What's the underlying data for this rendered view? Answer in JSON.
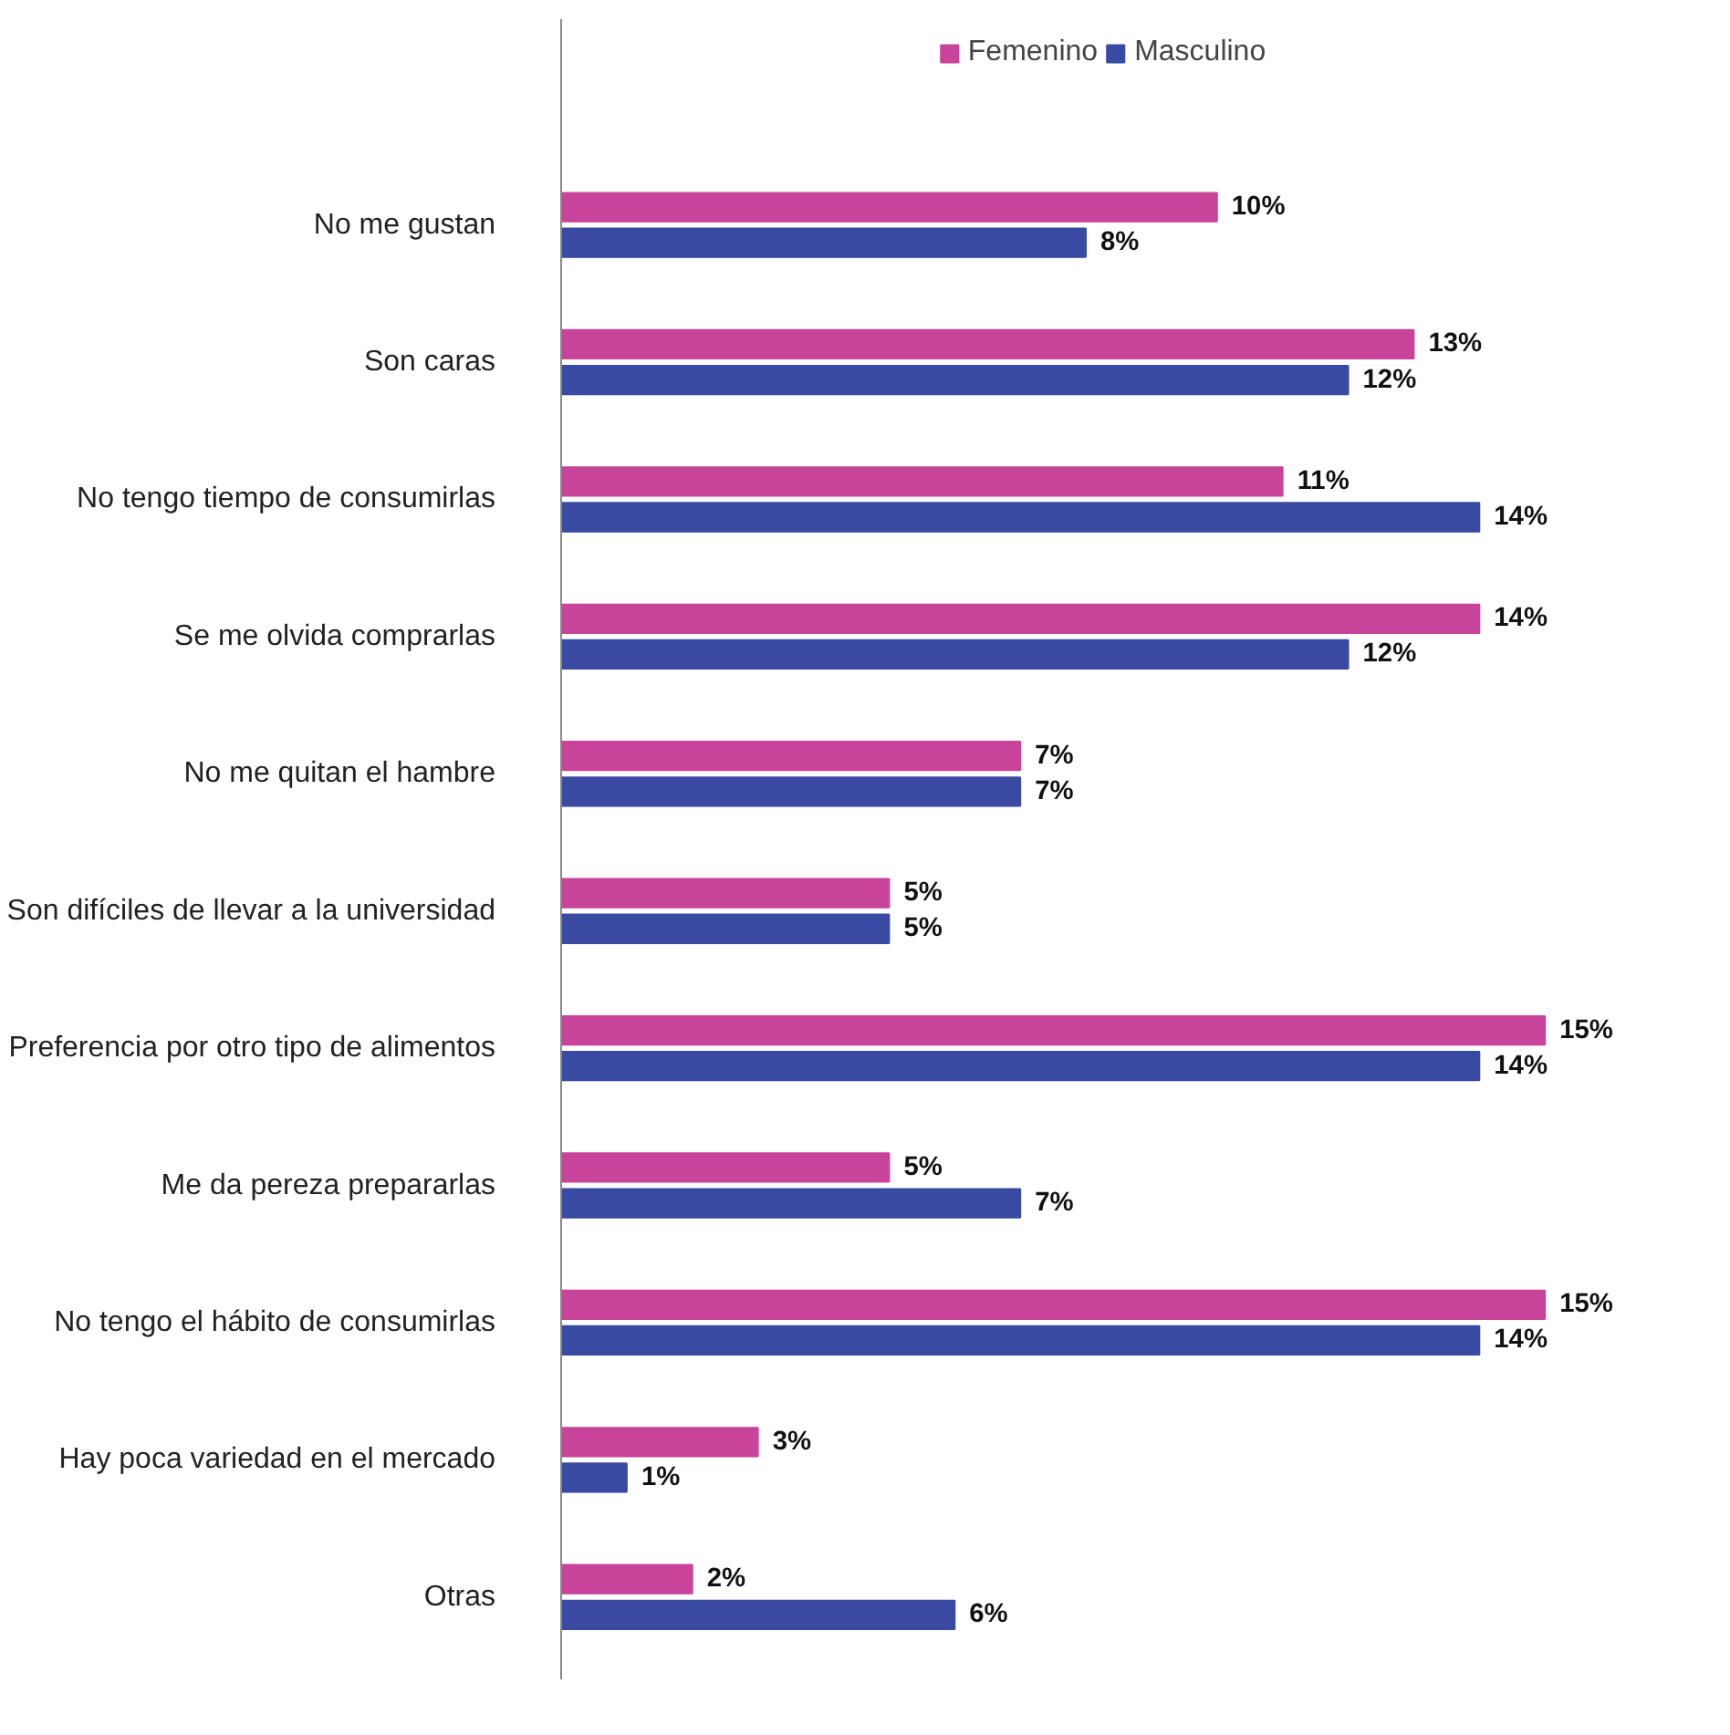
{
  "chart_data": {
    "type": "bar",
    "orientation": "horizontal",
    "categories": [
      "No me gustan",
      "Son caras",
      "No tengo tiempo de consumirlas",
      "Se me olvida comprarlas",
      "No me quitan el hambre",
      "Son difíciles de llevar a la universidad",
      "Preferencia por otro tipo de alimentos",
      "Me da pereza prepararlas",
      "No tengo el hábito de consumirlas",
      "Hay poca variedad en el mercado",
      "Otras"
    ],
    "series": [
      {
        "name": "Femenino",
        "color": "#c8449a",
        "values": [
          10,
          13,
          11,
          14,
          7,
          5,
          15,
          5,
          15,
          3,
          2
        ],
        "value_labels": [
          "10%",
          "13%",
          "11%",
          "14%",
          "7%",
          "5%",
          "15%",
          "5%",
          "15%",
          "3%",
          "2%"
        ]
      },
      {
        "name": "Masculino",
        "color": "#3a4aa2",
        "values": [
          8,
          12,
          14,
          12,
          7,
          5,
          14,
          7,
          14,
          1,
          6
        ],
        "value_labels": [
          "8%",
          "12%",
          "14%",
          "12%",
          "7%",
          "5%",
          "14%",
          "7%",
          "14%",
          "1%",
          "6%"
        ]
      }
    ],
    "tick_labels": "y",
    "grid": false,
    "legend": "top"
  }
}
